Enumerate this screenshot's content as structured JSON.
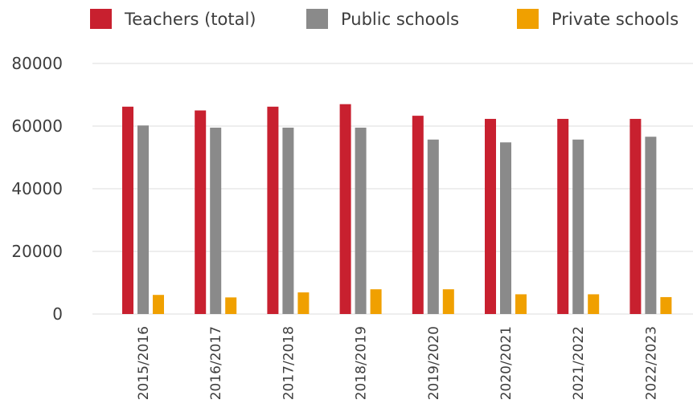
{
  "chart_data": {
    "type": "bar",
    "categories": [
      "2015/2016",
      "2016/2017",
      "2017/2018",
      "2018/2019",
      "2019/2020",
      "2020/2021",
      "2021/2022",
      "2022/2023"
    ],
    "series": [
      {
        "name": "Teachers (total)",
        "color": "#c8202f",
        "values": [
          66200,
          65000,
          66200,
          67000,
          63300,
          62300,
          62300,
          62300
        ]
      },
      {
        "name": "Public schools",
        "color": "#8a8a8a",
        "values": [
          60200,
          59500,
          59500,
          59500,
          55700,
          54800,
          55700,
          56600
        ]
      },
      {
        "name": "Private schools",
        "color": "#f0a000",
        "values": [
          6100,
          5300,
          6900,
          7900,
          7900,
          6300,
          6300,
          5400
        ]
      }
    ],
    "y_ticks": [
      "0",
      "20000",
      "40000",
      "60000",
      "80000"
    ],
    "ylim": [
      0,
      80000
    ],
    "grid": true,
    "legend": "top"
  }
}
